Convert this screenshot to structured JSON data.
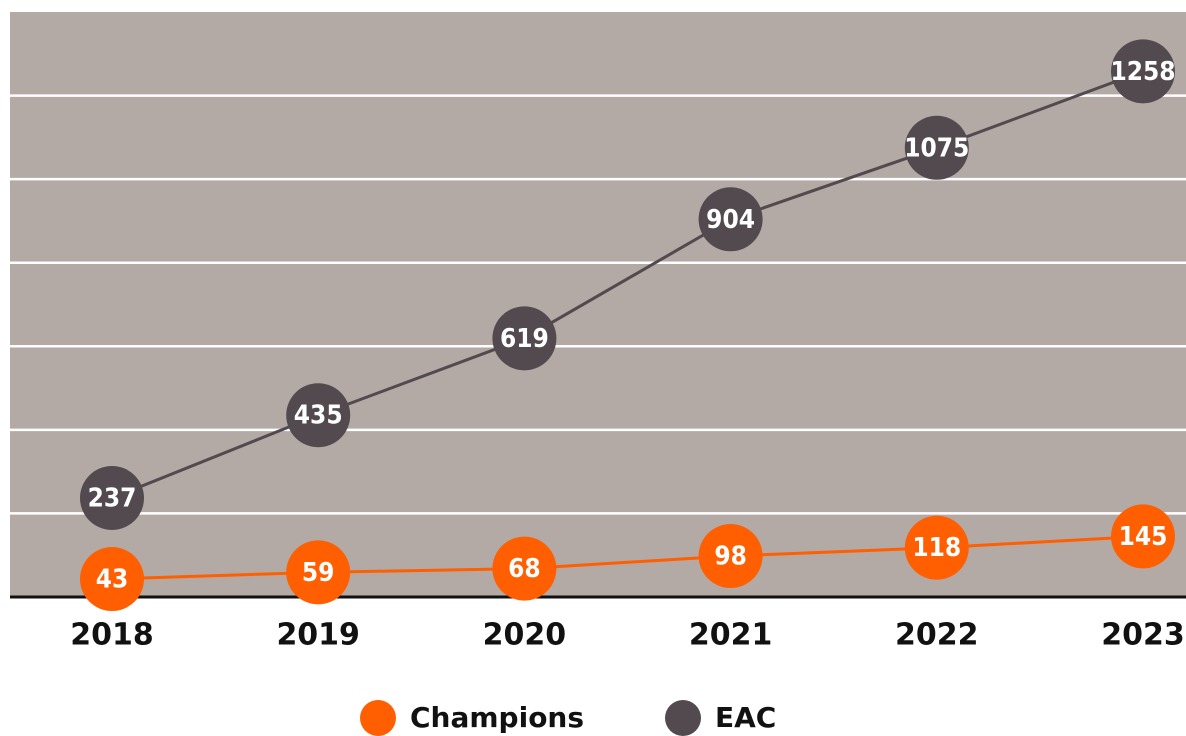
{
  "chart_data": {
    "type": "line",
    "categories": [
      "2018",
      "2019",
      "2020",
      "2021",
      "2022",
      "2023"
    ],
    "series": [
      {
        "name": "Champions",
        "color": "#ff5f00",
        "values": [
          43,
          59,
          68,
          98,
          118,
          145
        ]
      },
      {
        "name": "EAC",
        "color": "#524a4e",
        "values": [
          237,
          435,
          619,
          904,
          1075,
          1258
        ]
      }
    ],
    "ylim": [
      0,
      1400
    ],
    "yticks": [
      0,
      200,
      400,
      600,
      800,
      1000,
      1200,
      1400
    ],
    "grid": true,
    "background": "#b3aaa6",
    "legend": "bottom"
  }
}
